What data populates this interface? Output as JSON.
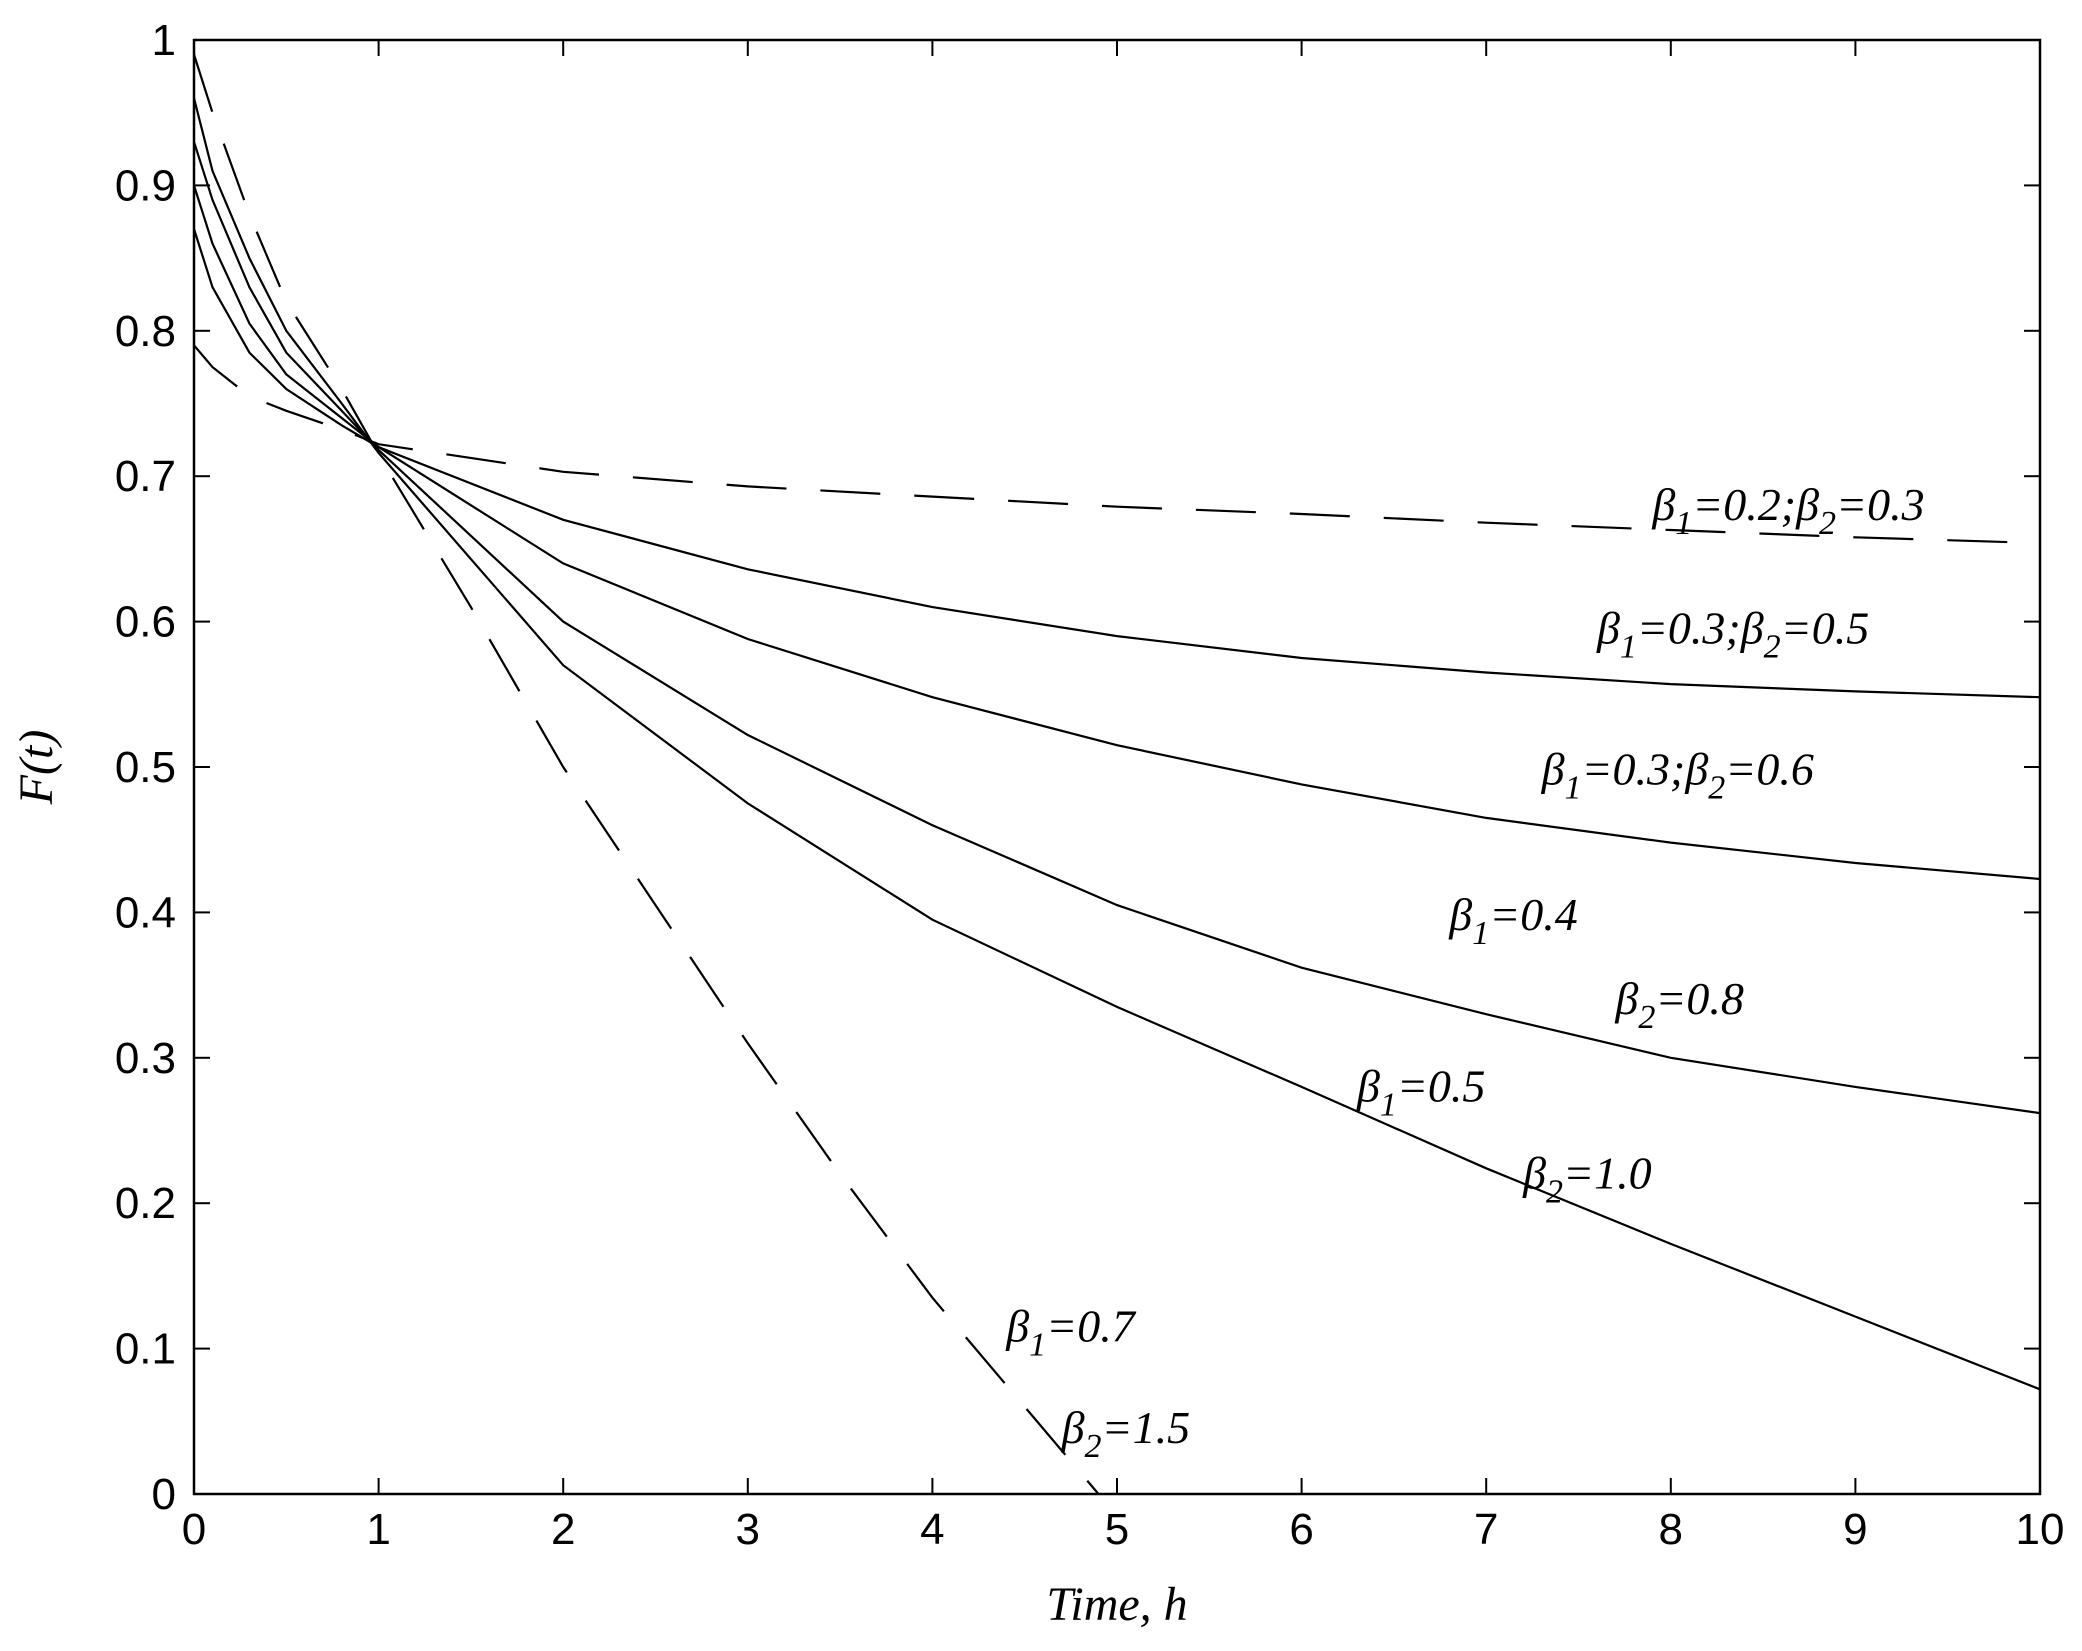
{
  "chart_data": {
    "type": "line",
    "title": "",
    "xlabel": "Time, h",
    "ylabel": "F(t)",
    "xlim": [
      0,
      10
    ],
    "ylim": [
      0,
      1
    ],
    "xticks": [
      "0",
      "1",
      "2",
      "3",
      "4",
      "5",
      "6",
      "7",
      "8",
      "9",
      "10"
    ],
    "yticks": [
      "0",
      "0.1",
      "0.2",
      "0.3",
      "0.4",
      "0.5",
      "0.6",
      "0.7",
      "0.8",
      "0.9",
      "1"
    ],
    "grid": false,
    "legend": "none",
    "series": [
      {
        "style": "dashed",
        "x": [
          0,
          0.1,
          0.3,
          0.5,
          0.8,
          1,
          2,
          3,
          4,
          5,
          6,
          7,
          8,
          9,
          10
        ],
        "y": [
          0.79,
          0.775,
          0.755,
          0.745,
          0.732,
          0.722,
          0.703,
          0.693,
          0.686,
          0.679,
          0.674,
          0.668,
          0.663,
          0.658,
          0.654
        ]
      },
      {
        "style": "solid",
        "x": [
          0,
          0.1,
          0.3,
          0.5,
          0.8,
          1,
          2,
          3,
          4,
          5,
          6,
          7,
          8,
          9,
          10
        ],
        "y": [
          0.87,
          0.83,
          0.785,
          0.76,
          0.735,
          0.72,
          0.67,
          0.636,
          0.61,
          0.59,
          0.575,
          0.565,
          0.557,
          0.552,
          0.548
        ]
      },
      {
        "style": "solid",
        "x": [
          0,
          0.1,
          0.3,
          0.5,
          0.8,
          1,
          2,
          3,
          4,
          5,
          6,
          7,
          8,
          9,
          10
        ],
        "y": [
          0.9,
          0.86,
          0.805,
          0.77,
          0.74,
          0.72,
          0.64,
          0.588,
          0.548,
          0.515,
          0.488,
          0.465,
          0.448,
          0.434,
          0.423
        ]
      },
      {
        "style": "solid",
        "x": [
          0,
          0.1,
          0.3,
          0.5,
          0.8,
          1,
          2,
          3,
          4,
          5,
          6,
          7,
          8,
          9,
          10
        ],
        "y": [
          0.93,
          0.89,
          0.83,
          0.785,
          0.745,
          0.718,
          0.6,
          0.522,
          0.46,
          0.405,
          0.362,
          0.33,
          0.3,
          0.28,
          0.262
        ]
      },
      {
        "style": "solid",
        "x": [
          0,
          0.1,
          0.3,
          0.5,
          0.8,
          1,
          2,
          3,
          4,
          5,
          6,
          7,
          8,
          9,
          10
        ],
        "y": [
          0.96,
          0.91,
          0.85,
          0.8,
          0.75,
          0.716,
          0.57,
          0.475,
          0.395,
          0.335,
          0.28,
          0.224,
          0.172,
          0.122,
          0.072
        ]
      },
      {
        "style": "dashed",
        "x": [
          0,
          0.1,
          0.3,
          0.5,
          0.8,
          1,
          1.5,
          2,
          2.5,
          3,
          3.5,
          4,
          4.5,
          4.9
        ],
        "y": [
          0.99,
          0.95,
          0.88,
          0.82,
          0.76,
          0.715,
          0.61,
          0.5,
          0.405,
          0.31,
          0.22,
          0.135,
          0.06,
          0.0
        ]
      }
    ],
    "annotations": [
      {
        "b1": "0.2",
        "b2": "0.3",
        "x": 7.9,
        "y": 0.67,
        "layout": "inline",
        "text": "β1=0.2;β2=0.3"
      },
      {
        "b1": "0.3",
        "b2": "0.5",
        "x": 7.6,
        "y": 0.585,
        "layout": "inline",
        "text": "β1=0.3;β2=0.5"
      },
      {
        "b1": "0.3",
        "b2": "0.6",
        "x": 7.3,
        "y": 0.488,
        "layout": "inline",
        "text": "β1=0.3;β2=0.6"
      },
      {
        "b1": "0.4",
        "b2": "0.8",
        "x": 6.8,
        "y": 0.388,
        "x2": 7.7,
        "y2": 0.33,
        "layout": "split",
        "text": "β1=0.4 β2=0.8"
      },
      {
        "b1": "0.5",
        "b2": "1.0",
        "x": 6.3,
        "y": 0.27,
        "x2": 7.2,
        "y2": 0.21,
        "layout": "split",
        "text": "β1=0.5 β2=1.0"
      },
      {
        "b1": "0.7",
        "b2": "1.5",
        "x": 4.4,
        "y": 0.105,
        "x2": 4.7,
        "y2": 0.035,
        "layout": "split",
        "text": "β1=0.7 β2=1.5"
      }
    ]
  }
}
